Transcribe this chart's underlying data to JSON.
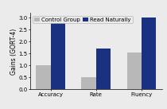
{
  "categories": [
    "Accuracy",
    "Rate",
    "Fluency"
  ],
  "control_values": [
    1.0,
    0.5,
    1.55
  ],
  "rn_values": [
    2.9,
    1.7,
    3.0
  ],
  "control_color": "#b8b8b8",
  "rn_color": "#1a3080",
  "ylabel": "Gains (GORT-4)",
  "ylim": [
    0.0,
    3.2
  ],
  "yticks": [
    0.0,
    0.5,
    1.0,
    1.5,
    2.0,
    2.5,
    3.0
  ],
  "legend_labels": [
    "Control Group",
    "Read Naturally"
  ],
  "bar_width": 0.32,
  "background_color": "#ebebeb",
  "axis_fontsize": 5.5,
  "tick_fontsize": 5.0,
  "legend_fontsize": 5.0
}
